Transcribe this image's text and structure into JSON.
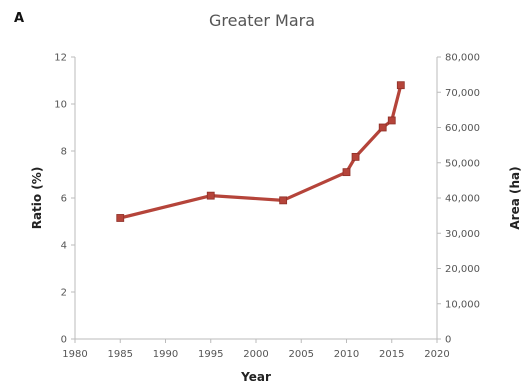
{
  "chart_data": {
    "type": "line",
    "panel_label": "A",
    "title": "Greater Mara",
    "xlabel": "Year",
    "ylabel": "Ratio (%)",
    "y2label": "Area (ha)",
    "xlim": [
      1980,
      2020
    ],
    "ylim": [
      0,
      12
    ],
    "y2lim": [
      0,
      80000
    ],
    "x_ticks": [
      1980,
      1985,
      1990,
      1995,
      2000,
      2005,
      2010,
      2015,
      2020
    ],
    "y_ticks": [
      0,
      2,
      4,
      6,
      8,
      10,
      12
    ],
    "y2_ticks": [
      "0",
      "10,000",
      "20,000",
      "30,000",
      "40,000",
      "50,000",
      "60,000",
      "70,000",
      "80,000"
    ],
    "grid": false,
    "colors": {
      "line": "#b5443a",
      "marker": "#b5443a"
    },
    "series": [
      {
        "x": [
          1985,
          1995,
          2003,
          2010,
          2011,
          2014,
          2015,
          2016
        ],
        "y": [
          5.15,
          6.1,
          5.9,
          7.1,
          7.75,
          9.0,
          9.3,
          10.8
        ]
      }
    ]
  }
}
